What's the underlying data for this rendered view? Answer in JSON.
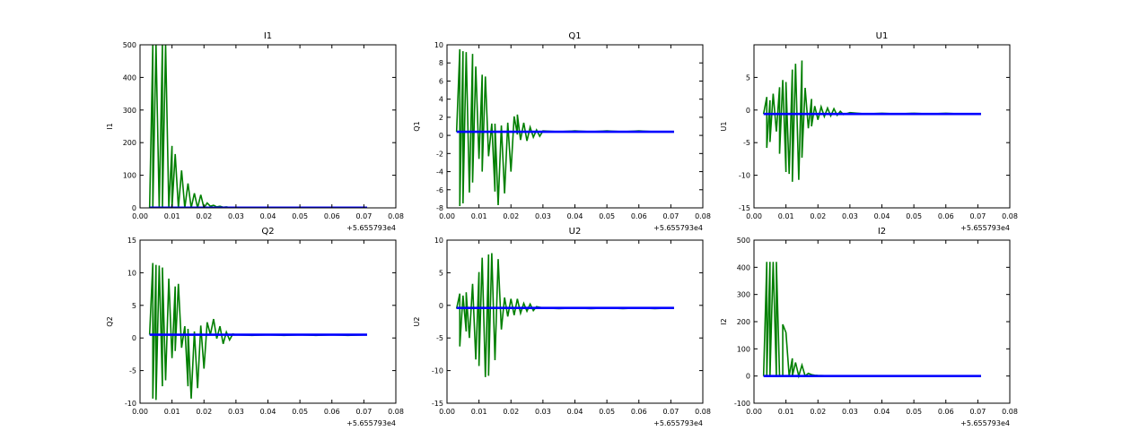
{
  "figure": {
    "background": "#ffffff",
    "series_colors": {
      "data": "#007f00",
      "model": "#0000ff"
    }
  },
  "chart_data": [
    {
      "type": "line",
      "title": "I1",
      "ylabel": "I1",
      "xlabel": "",
      "offset_label": "+5.655793e4",
      "xlim": [
        0.0,
        0.08
      ],
      "ylim": [
        0,
        500
      ],
      "xticks": [
        "0.00",
        "0.01",
        "0.02",
        "0.03",
        "0.04",
        "0.05",
        "0.06",
        "0.07",
        "0.08"
      ],
      "yticks": [
        0,
        100,
        200,
        300,
        400,
        500
      ],
      "grid": false,
      "series": [
        {
          "color": "#007f00",
          "x": [
            0.003,
            0.004,
            0.004,
            0.005,
            0.006,
            0.007,
            0.007,
            0.008,
            0.009,
            0.01,
            0.01,
            0.011,
            0.012,
            0.013,
            0.014,
            0.015,
            0.016,
            0.017,
            0.018,
            0.019,
            0.02,
            0.021,
            0.022,
            0.023,
            0.024,
            0.025,
            0.026,
            0.027,
            0.028,
            0.03,
            0.035,
            0.04,
            0.045,
            0.05,
            0.055,
            0.06,
            0.065,
            0.071
          ],
          "y": [
            0,
            500,
            0,
            500,
            0,
            500,
            0,
            500,
            0,
            190,
            0,
            165,
            0,
            115,
            0,
            75,
            0,
            45,
            0,
            40,
            0,
            15,
            5,
            8,
            3,
            5,
            2,
            3,
            1,
            2,
            1,
            1,
            1,
            1,
            1,
            1,
            1,
            1
          ]
        },
        {
          "color": "#0000ff",
          "x": [
            0.003,
            0.071
          ],
          "y": [
            0.5,
            0.5
          ]
        }
      ]
    },
    {
      "type": "line",
      "title": "Q1",
      "ylabel": "Q1",
      "xlabel": "",
      "offset_label": "+5.655793e4",
      "xlim": [
        0.0,
        0.08
      ],
      "ylim": [
        -8,
        10
      ],
      "xticks": [
        "0.00",
        "0.01",
        "0.02",
        "0.03",
        "0.04",
        "0.05",
        "0.06",
        "0.07",
        "0.08"
      ],
      "yticks": [
        -8,
        -6,
        -4,
        -2,
        0,
        2,
        4,
        6,
        8,
        10
      ],
      "grid": false,
      "series": [
        {
          "color": "#007f00",
          "x": [
            0.003,
            0.004,
            0.004,
            0.005,
            0.005,
            0.006,
            0.007,
            0.008,
            0.008,
            0.009,
            0.01,
            0.011,
            0.011,
            0.012,
            0.013,
            0.014,
            0.015,
            0.015,
            0.016,
            0.017,
            0.018,
            0.019,
            0.02,
            0.021,
            0.022,
            0.022,
            0.023,
            0.024,
            0.025,
            0.026,
            0.027,
            0.028,
            0.029,
            0.03,
            0.035,
            0.04,
            0.045,
            0.05,
            0.055,
            0.06,
            0.065,
            0.071
          ],
          "y": [
            0.4,
            9.5,
            -7.8,
            9.3,
            -7.5,
            9.2,
            -6.3,
            9.0,
            -5.2,
            7.6,
            -2.6,
            6.7,
            -4.0,
            6.5,
            -2.3,
            1.3,
            -6.2,
            1.3,
            -7.7,
            1.1,
            -6.4,
            1.4,
            -4.0,
            2.1,
            0.1,
            2.3,
            -0.5,
            1.4,
            -0.6,
            0.9,
            -0.2,
            0.6,
            -0.1,
            0.5,
            0.4,
            0.5,
            0.4,
            0.5,
            0.4,
            0.5,
            0.4,
            0.4
          ]
        },
        {
          "color": "#0000ff",
          "x": [
            0.003,
            0.071
          ],
          "y": [
            0.4,
            0.4
          ]
        }
      ]
    },
    {
      "type": "line",
      "title": "U1",
      "ylabel": "U1",
      "xlabel": "",
      "offset_label": "+5.655793e4",
      "xlim": [
        0.0,
        0.08
      ],
      "ylim": [
        -15,
        10
      ],
      "xticks": [
        "0.00",
        "0.01",
        "0.02",
        "0.03",
        "0.04",
        "0.05",
        "0.06",
        "0.07",
        "0.08"
      ],
      "yticks": [
        -15,
        -10,
        -5,
        0,
        5
      ],
      "grid": false,
      "series": [
        {
          "color": "#007f00",
          "x": [
            0.003,
            0.004,
            0.004,
            0.005,
            0.005,
            0.006,
            0.007,
            0.008,
            0.008,
            0.009,
            0.01,
            0.01,
            0.011,
            0.012,
            0.012,
            0.013,
            0.014,
            0.015,
            0.015,
            0.016,
            0.017,
            0.018,
            0.018,
            0.019,
            0.02,
            0.021,
            0.022,
            0.023,
            0.024,
            0.025,
            0.026,
            0.027,
            0.028,
            0.03,
            0.035,
            0.04,
            0.045,
            0.05,
            0.055,
            0.06,
            0.065,
            0.071
          ],
          "y": [
            -0.6,
            2.0,
            -5.8,
            1.5,
            -4.9,
            2.5,
            -3.3,
            3.5,
            -6.7,
            4.6,
            -9.5,
            4.3,
            -9.8,
            6.2,
            -11.0,
            7.1,
            -10.7,
            7.6,
            -7.3,
            3.4,
            -2.8,
            1.7,
            -2.5,
            0.6,
            -1.5,
            0.5,
            -1.0,
            0.3,
            -0.9,
            0.2,
            -0.8,
            -0.2,
            -0.7,
            -0.4,
            -0.6,
            -0.5,
            -0.6,
            -0.5,
            -0.6,
            -0.5,
            -0.6,
            -0.6
          ]
        },
        {
          "color": "#0000ff",
          "x": [
            0.003,
            0.071
          ],
          "y": [
            -0.6,
            -0.6
          ]
        }
      ]
    },
    {
      "type": "line",
      "title": "Q2",
      "ylabel": "Q2",
      "xlabel": "",
      "offset_label": "+5.655793e4",
      "xlim": [
        0.0,
        0.08
      ],
      "ylim": [
        -10,
        15
      ],
      "xticks": [
        "0.00",
        "0.01",
        "0.02",
        "0.03",
        "0.04",
        "0.05",
        "0.06",
        "0.07",
        "0.08"
      ],
      "yticks": [
        -10,
        -5,
        0,
        5,
        10,
        15
      ],
      "grid": false,
      "series": [
        {
          "color": "#007f00",
          "x": [
            0.003,
            0.004,
            0.004,
            0.005,
            0.005,
            0.006,
            0.007,
            0.007,
            0.008,
            0.009,
            0.01,
            0.011,
            0.011,
            0.012,
            0.013,
            0.014,
            0.015,
            0.015,
            0.016,
            0.017,
            0.018,
            0.019,
            0.02,
            0.021,
            0.022,
            0.023,
            0.024,
            0.025,
            0.026,
            0.027,
            0.028,
            0.029,
            0.03,
            0.035,
            0.04,
            0.045,
            0.05,
            0.055,
            0.06,
            0.065,
            0.071
          ],
          "y": [
            0.5,
            11.5,
            -9.3,
            11.2,
            -9.5,
            11.1,
            -7.4,
            10.8,
            -6.5,
            9.1,
            -3.1,
            7.9,
            -2.0,
            8.3,
            -1.5,
            1.8,
            -7.4,
            1.4,
            -9.3,
            1.0,
            -7.7,
            1.9,
            -4.7,
            2.4,
            0.5,
            2.9,
            -0.1,
            1.8,
            -0.9,
            0.9,
            -0.3,
            0.6,
            0.5,
            0.4,
            0.5,
            0.4,
            0.5,
            0.4,
            0.5,
            0.4,
            0.5
          ]
        },
        {
          "color": "#0000ff",
          "x": [
            0.003,
            0.071
          ],
          "y": [
            0.5,
            0.5
          ]
        }
      ]
    },
    {
      "type": "line",
      "title": "U2",
      "ylabel": "U2",
      "xlabel": "",
      "offset_label": "+5.655793e4",
      "xlim": [
        0.0,
        0.08
      ],
      "ylim": [
        -15,
        10
      ],
      "xticks": [
        "0.00",
        "0.01",
        "0.02",
        "0.03",
        "0.04",
        "0.05",
        "0.06",
        "0.07",
        "0.08"
      ],
      "yticks": [
        -15,
        -10,
        -5,
        0,
        5,
        10
      ],
      "grid": false,
      "series": [
        {
          "color": "#007f00",
          "x": [
            0.003,
            0.004,
            0.004,
            0.005,
            0.006,
            0.006,
            0.007,
            0.008,
            0.009,
            0.01,
            0.01,
            0.011,
            0.012,
            0.013,
            0.013,
            0.014,
            0.015,
            0.016,
            0.017,
            0.018,
            0.019,
            0.02,
            0.021,
            0.022,
            0.023,
            0.024,
            0.025,
            0.026,
            0.027,
            0.028,
            0.03,
            0.035,
            0.04,
            0.045,
            0.05,
            0.055,
            0.06,
            0.065,
            0.071
          ],
          "y": [
            -0.5,
            1.8,
            -6.3,
            1.5,
            -4.0,
            2.0,
            -5.0,
            3.3,
            -8.3,
            5.1,
            -9.3,
            7.3,
            -11.0,
            7.8,
            -10.8,
            8.0,
            -8.4,
            7.1,
            -3.7,
            1.2,
            -1.7,
            1.0,
            -1.5,
            1.0,
            -1.2,
            0.3,
            -0.9,
            0.2,
            -0.8,
            -0.2,
            -0.4,
            -0.5,
            -0.4,
            -0.5,
            -0.4,
            -0.5,
            -0.4,
            -0.5,
            -0.4
          ]
        },
        {
          "color": "#0000ff",
          "x": [
            0.003,
            0.071
          ],
          "y": [
            -0.4,
            -0.4
          ]
        }
      ]
    },
    {
      "type": "line",
      "title": "I2",
      "ylabel": "I2",
      "xlabel": "",
      "offset_label": "+5.655793e4",
      "xlim": [
        0.0,
        0.08
      ],
      "ylim": [
        -100,
        500
      ],
      "xticks": [
        "0.00",
        "0.01",
        "0.02",
        "0.03",
        "0.04",
        "0.05",
        "0.06",
        "0.07",
        "0.08"
      ],
      "yticks": [
        -100,
        0,
        100,
        200,
        300,
        400,
        500
      ],
      "grid": false,
      "series": [
        {
          "color": "#007f00",
          "x": [
            0.003,
            0.004,
            0.004,
            0.005,
            0.005,
            0.006,
            0.007,
            0.007,
            0.008,
            0.009,
            0.009,
            0.01,
            0.011,
            0.012,
            0.012,
            0.013,
            0.014,
            0.015,
            0.016,
            0.017,
            0.018,
            0.019,
            0.02,
            0.022,
            0.025,
            0.03,
            0.035,
            0.04,
            0.05,
            0.06,
            0.071
          ],
          "y": [
            0,
            420,
            0,
            420,
            0,
            420,
            0,
            420,
            0,
            0,
            190,
            160,
            0,
            65,
            0,
            50,
            0,
            40,
            0,
            10,
            5,
            3,
            2,
            1,
            1,
            1,
            1,
            1,
            1,
            1,
            1
          ]
        },
        {
          "color": "#0000ff",
          "x": [
            0.003,
            0.071
          ],
          "y": [
            0,
            0
          ]
        }
      ]
    }
  ]
}
